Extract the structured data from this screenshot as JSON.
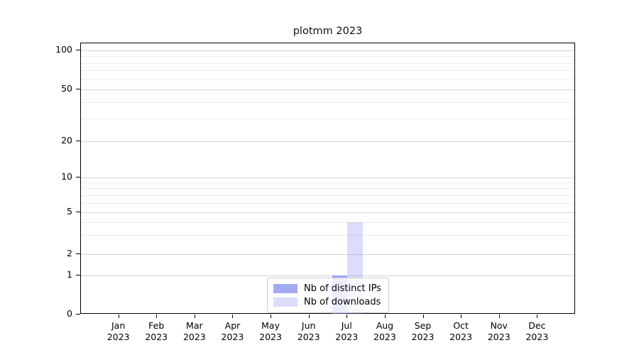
{
  "figure": {
    "title": "plotmm 2023"
  },
  "chart_data": {
    "type": "bar",
    "title": "plotmm 2023",
    "categories": [
      "Jan",
      "Feb",
      "Mar",
      "Apr",
      "May",
      "Jun",
      "Jul",
      "Aug",
      "Sep",
      "Oct",
      "Nov",
      "Dec"
    ],
    "category_year": "2023",
    "series": [
      {
        "name": "Nb of distinct IPs",
        "color": "rgba(104,112,236,0.60)",
        "values": [
          0,
          0,
          0,
          0,
          0,
          0,
          1,
          0,
          0,
          0,
          0,
          0
        ]
      },
      {
        "name": "Nb of downloads",
        "color": "rgba(104,112,236,0.24)",
        "values": [
          0,
          0,
          0,
          0,
          0,
          0,
          4,
          0,
          0,
          0,
          0,
          0
        ]
      }
    ],
    "y_ticks": [
      0,
      1,
      2,
      5,
      10,
      20,
      50,
      100
    ],
    "y_minor_gridlines": [
      3,
      4,
      6,
      7,
      8,
      9,
      30,
      40,
      60,
      70,
      80,
      90
    ],
    "ylim": [
      0,
      110
    ],
    "y_scale": "symlog (log above 1, linear 0-1)",
    "grid": "both",
    "legend_position": "lower center",
    "xlabel": "",
    "ylabel": "",
    "axis_color": "#000000",
    "major_grid_color": "#d4d4d4",
    "minor_grid_color": "#ececec"
  }
}
